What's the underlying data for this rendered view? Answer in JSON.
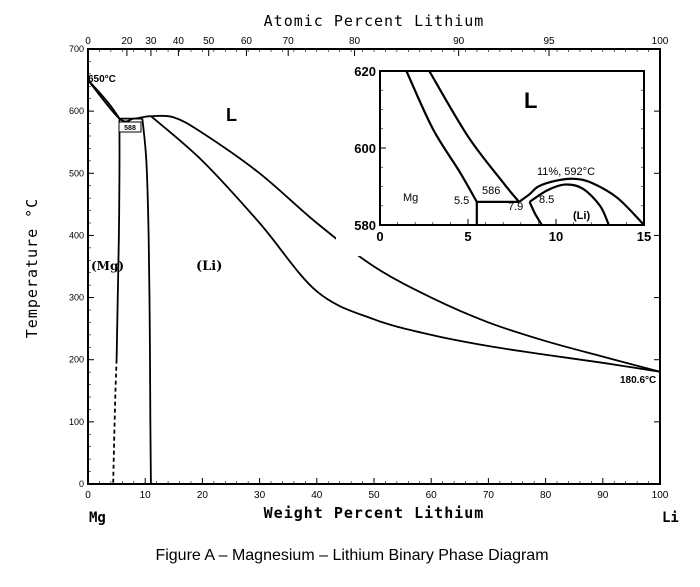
{
  "caption": "Figure A – Magnesium – Lithium Binary Phase Diagram",
  "chart_data": [
    {
      "type": "line",
      "top_axis_label": "Atomic Percent Lithium",
      "top_ticks": [
        "0",
        "20",
        "30",
        "40",
        "50",
        "60",
        "70",
        "80",
        "90",
        "95",
        "100"
      ],
      "top_ticks_wt": [
        0,
        6.8,
        11.0,
        15.8,
        21.1,
        27.7,
        35.0,
        46.6,
        64.8,
        80.6,
        100
      ],
      "xlabel": "Weight Percent Lithium",
      "ylabel": "Temperature °C",
      "xlim": [
        0,
        100
      ],
      "ylim": [
        0,
        700
      ],
      "x_ticks": [
        0,
        10,
        20,
        30,
        40,
        50,
        60,
        70,
        80,
        90,
        100
      ],
      "y_ticks": [
        0,
        100,
        200,
        300,
        400,
        500,
        600,
        700
      ],
      "end_labels": {
        "left": "Mg",
        "right": "Li"
      },
      "region_labels": {
        "liquid": "L",
        "mg_solid": "(Mg)",
        "li_solid": "(Li)"
      },
      "annotations": {
        "mg_melting": "650°C",
        "eutectic": "588",
        "li_melting": "180.6°C"
      },
      "key_points": {
        "mg_melting_c": 650,
        "eutectic_c": 588,
        "li_melting_c": 180.6
      },
      "series": [
        {
          "values_x": [
            0,
            5.5,
            8,
            10,
            11
          ],
          "values_y": [
            650,
            588,
            588,
            591,
            592
          ]
        },
        {
          "values_x": [
            0,
            2,
            4,
            5.5
          ],
          "values_y": [
            650,
            630,
            608,
            588
          ]
        },
        {
          "values_x": [
            5.5,
            5.5,
            5.4,
            5.2,
            5.0
          ],
          "values_y": [
            588,
            500,
            400,
            300,
            200
          ]
        },
        {
          "values_x": [
            5.0,
            4.8,
            4.6,
            4.4
          ],
          "values_y": [
            200,
            150,
            80,
            0
          ]
        },
        {
          "values_x": [
            5.5,
            8,
            9.5
          ],
          "values_y": [
            588,
            588,
            588
          ]
        },
        {
          "values_x": [
            9.5,
            10.2,
            10.6,
            10.8,
            10.9,
            11.0
          ],
          "values_y": [
            588,
            520,
            400,
            250,
            100,
            0
          ]
        },
        {
          "values_x": [
            11,
            20,
            30,
            40,
            50,
            60,
            70,
            80,
            90,
            100
          ],
          "values_y": [
            592,
            520,
            420,
            310,
            265,
            240,
            222,
            208,
            195,
            180.6
          ]
        },
        {
          "values_x": [
            11,
            15,
            20,
            30,
            40,
            50,
            60,
            70,
            80,
            90,
            100
          ],
          "values_y": [
            592,
            590,
            565,
            500,
            420,
            350,
            300,
            260,
            230,
            205,
            180.6
          ]
        }
      ]
    },
    {
      "type": "line",
      "title": "L",
      "xlim": [
        0,
        15
      ],
      "ylim": [
        580,
        620
      ],
      "x_ticks": [
        0,
        5,
        10,
        15
      ],
      "y_ticks": [
        580,
        600,
        620
      ],
      "labels": {
        "mg": "Mg",
        "li_solid": "(Li)",
        "eutectic_temp": "586",
        "max_point": "11%, 592°C",
        "c1": "5.5",
        "c2": "7.9",
        "c3": "8.5"
      },
      "series": [
        {
          "values_x": [
            1.5,
            3,
            4.5,
            5.5
          ],
          "values_y": [
            620,
            605,
            594,
            586
          ]
        },
        {
          "values_x": [
            2.8,
            5,
            7,
            7.9
          ],
          "values_y": [
            620,
            603,
            591,
            586
          ]
        },
        {
          "values_x": [
            5.5,
            7.9
          ],
          "values_y": [
            586,
            586
          ]
        },
        {
          "values_x": [
            5.5,
            5.5
          ],
          "values_y": [
            586,
            580
          ]
        },
        {
          "values_x": [
            7.9,
            8.5,
            9,
            10,
            11,
            12,
            13.5,
            15
          ],
          "values_y": [
            586,
            588,
            590,
            591.5,
            592,
            591,
            587,
            580
          ]
        },
        {
          "values_x": [
            8.5,
            9.5,
            10.5,
            11.5,
            12.5,
            13
          ],
          "values_y": [
            586,
            589,
            590.5,
            589.5,
            585,
            580
          ]
        },
        {
          "values_x": [
            8.5,
            8.8,
            9.2
          ],
          "values_y": [
            586,
            583,
            580
          ]
        }
      ]
    }
  ]
}
